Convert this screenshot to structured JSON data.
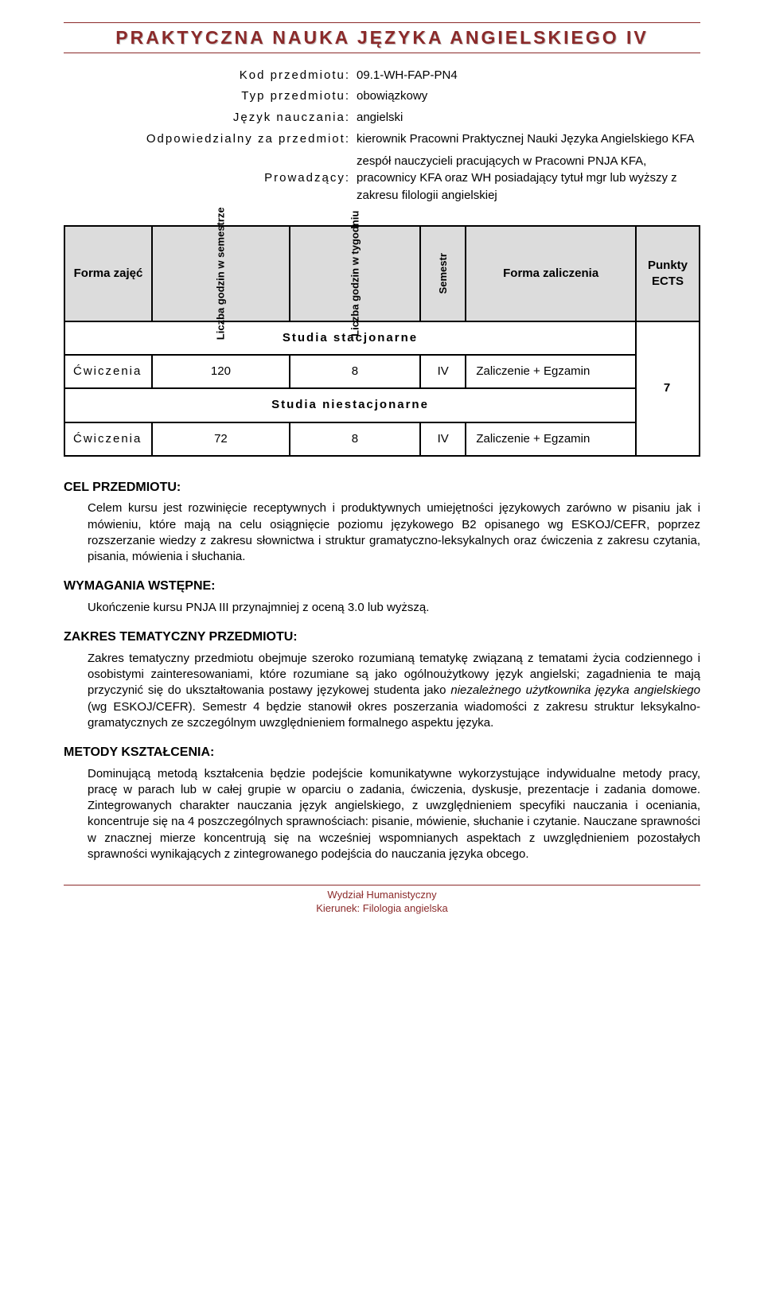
{
  "title": "PRAKTYCZNA NAUKA JĘZYKA ANGIELSKIEGO IV",
  "meta": {
    "kod_label": "Kod przedmiotu:",
    "kod_value": "09.1-WH-FAP-PN4",
    "typ_label": "Typ przedmiotu:",
    "typ_value": "obowiązkowy",
    "jezyk_label": "Język nauczania:",
    "jezyk_value": "angielski",
    "odp_label": "Odpowiedzialny za przedmiot:",
    "odp_value": "kierownik Pracowni Praktycznej Nauki Języka Angielskiego KFA",
    "prow_label": "Prowadzący:",
    "prow_value": "zespół nauczycieli pracujących w Pracowni PNJA KFA, pracownicy KFA oraz WH posiadający tytuł mgr  lub wyższy z zakresu filologii angielskiej"
  },
  "formTable": {
    "headers": {
      "forma_zajec": "Forma zajęć",
      "lg_sem": "Liczba godzin w semestrze",
      "lg_tyg": "Liczba godzin w tygodniu",
      "semestr": "Semestr",
      "forma_zal": "Forma zaliczenia",
      "punkty": "Punkty ECTS"
    },
    "section_stac": "Studia stacjonarne",
    "section_niestac": "Studia niestacjonarne",
    "row_stac": {
      "forma": "Ćwiczenia",
      "sem_h": "120",
      "tyg_h": "8",
      "sem": "IV",
      "zal": "Zaliczenie + Egzamin"
    },
    "row_niestac": {
      "forma": "Ćwiczenia",
      "sem_h": "72",
      "tyg_h": "8",
      "sem": "IV",
      "zal": "Zaliczenie + Egzamin"
    },
    "ects": "7"
  },
  "sections": {
    "cel_h": "CEL PRZEDMIOTU:",
    "cel_b": "Celem kursu jest rozwinięcie receptywnych i produktywnych umiejętności językowych zarówno w pisaniu jak i mówieniu, które mają na celu osiągnięcie poziomu językowego B2 opisanego wg ESKOJ/CEFR, poprzez rozszerzanie wiedzy z zakresu słownictwa i struktur gramatyczno-leksykalnych oraz ćwiczenia z zakresu czytania, pisania, mówienia i słuchania.",
    "wym_h": "WYMAGANIA WSTĘPNE:",
    "wym_b": "Ukończenie kursu PNJA III przynajmniej z oceną 3.0 lub wyższą.",
    "zak_h": "ZAKRES TEMATYCZNY PRZEDMIOTU:",
    "zak_b_pre": "Zakres tematyczny przedmiotu obejmuje szeroko rozumianą tematykę związaną z tematami życia codziennego i osobistymi zainteresowaniami, które rozumiane są jako ogólnoużytkowy język angielski; zagadnienia te mają przyczynić się do ukształtowania postawy językowej studenta jako ",
    "zak_b_italic": "niezależnego użytkownika języka angielskiego",
    "zak_b_post": " (wg ESKOJ/CEFR). Semestr 4  będzie stanowił okres poszerzania wiadomości z zakresu struktur leksykalno-gramatycznych ze szczególnym uwzględnieniem formalnego aspektu języka.",
    "met_h": "METODY KSZTAŁCENIA:",
    "met_b": "Dominującą metodą kształcenia będzie podejście komunikatywne wykorzystujące indywidualne metody pracy, pracę w parach lub w całej grupie w oparciu o zadania, ćwiczenia, dyskusje, prezentacje i zadania domowe. Zintegrowanych charakter nauczania język angielskiego, z uwzględnieniem specyfiki nauczania i oceniania, koncentruje się na 4 poszczególnych sprawnościach: pisanie, mówienie, słuchanie i czytanie. Nauczane sprawności w znacznej mierze koncentrują się na wcześniej wspomnianych aspektach z uwzględnieniem pozostałych sprawności wynikających z zintegrowanego podejścia do nauczania języka obcego."
  },
  "footer": {
    "line1": "Wydział Humanistyczny",
    "line2": "Kierunek: Filologia angielska"
  },
  "colors": {
    "accent": "#8b2a2a",
    "header_bg": "#dcdcdc",
    "border": "#000000",
    "bg": "#ffffff"
  }
}
